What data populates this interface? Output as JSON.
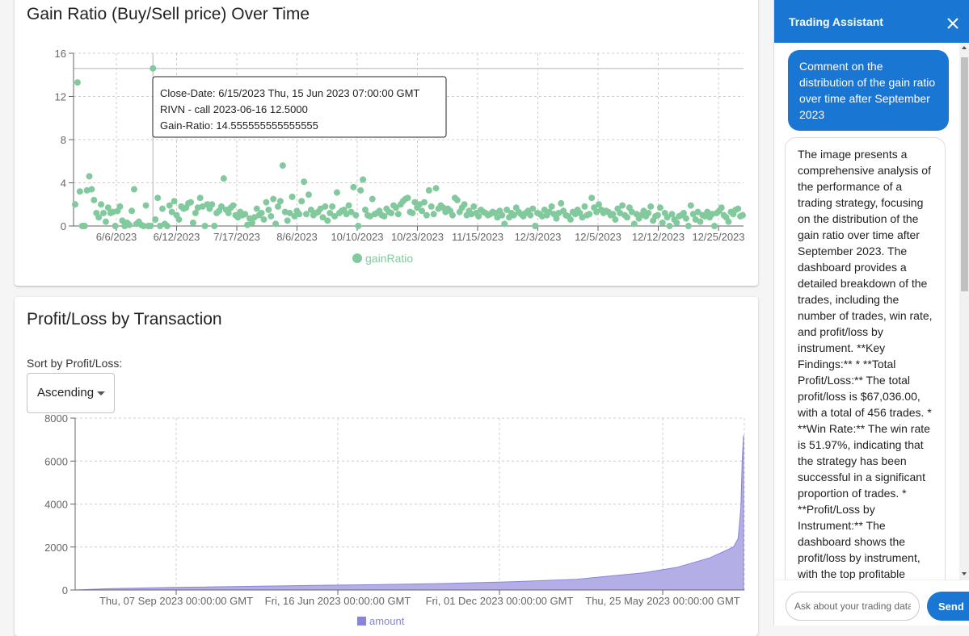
{
  "colors": {
    "accent": "#1976d2",
    "scatter": "#82ca9d",
    "area": "#8884d8"
  },
  "gain_card": {
    "title": "Gain Ratio (Buy/Sell price) Over Time",
    "legend": "gainRatio",
    "tooltip": {
      "line1": "Close-Date: 6/15/2023 Thu, 15 Jun 2023 07:00:00 GMT",
      "line2": "RIVN - call 2023-06-16 12.5000",
      "line3": "Gain-Ratio: 14.555555555555555"
    }
  },
  "pl_card": {
    "title": "Profit/Loss by Transaction",
    "sort_label": "Sort by Profit/Loss:",
    "sort_value": "Ascending",
    "legend": "amount"
  },
  "chart_data": [
    {
      "type": "scatter",
      "title": "Gain Ratio (Buy/Sell price) Over Time",
      "series_name": "gainRatio",
      "ylim": [
        0,
        16
      ],
      "yticks": [
        0,
        4,
        8,
        12,
        16
      ],
      "xtick_labels": [
        "6/6/2023",
        "6/12/2023",
        "7/17/2023",
        "8/6/2023",
        "10/10/2023",
        "10/23/2023",
        "11/15/2023",
        "12/3/2023",
        "12/5/2023",
        "12/12/2023",
        "12/25/2023"
      ],
      "highlighted_point": {
        "close_date": "6/15/2023",
        "gain_ratio": 14.555555555555555
      },
      "values": [
        2.0,
        13.3,
        3.2,
        0.0,
        0.0,
        3.3,
        4.6,
        3.4,
        2.4,
        1.2,
        0.8,
        2.0,
        1.2,
        0.4,
        1.7,
        1.2,
        1.3,
        0.0,
        1.4,
        1.8,
        0.5,
        0.0,
        0.3,
        0.1,
        1.4,
        3.4,
        0.2,
        0.4,
        0.1,
        0.0,
        1.9,
        0.0,
        0.0,
        14.6,
        0.6,
        2.6,
        0.0,
        1.6,
        0.2,
        0.0,
        1.9,
        1.3,
        2.3,
        1.0,
        0.6,
        1.8,
        1.6,
        1.7,
        2.1,
        2.2,
        0.3,
        1.2,
        1.7,
        2.6,
        1.8,
        0.0,
        2.0,
        1.6,
        2.0,
        0.0,
        1.2,
        1.4,
        1.8,
        4.4,
        1.5,
        1.2,
        1.7,
        1.9,
        1.0,
        0.8,
        1.3,
        1.0,
        1.1,
        0.1,
        0.7,
        0.3,
        0.8,
        1.6,
        1.0,
        1.2,
        0.6,
        2.2,
        1.5,
        0.9,
        2.5,
        0.2,
        1.8,
        2.3,
        5.6,
        1.3,
        0.5,
        1.2,
        2.7,
        0.9,
        1.4,
        1.1,
        2.3,
        4.1,
        1.1,
        2.9,
        1.5,
        1.0,
        1.2,
        1.3,
        1.6,
        0.8,
        1.8,
        0.5,
        1.2,
        1.8,
        0.9,
        3.1,
        1.2,
        1.4,
        1.5,
        1.1,
        1.9,
        1.3,
        3.6,
        1.0,
        0.0,
        3.3,
        4.3,
        1.5,
        1.0,
        0.9,
        2.5,
        1.1,
        1.2,
        1.4,
        1.0,
        0.9,
        1.6,
        1.3,
        1.2,
        1.9,
        1.7,
        1.1,
        2.0,
        2.3,
        2.5,
        2.6,
        1.3,
        1.2,
        2.2,
        1.7,
        2.0,
        1.4,
        2.2,
        1.0,
        3.3,
        1.8,
        1.1,
        3.5,
        1.6,
        1.9,
        1.7,
        1.3,
        1.6,
        1.4,
        1.0,
        2.6,
        2.4,
        1.3,
        1.7,
        2.0,
        1.0,
        1.4,
        1.1,
        1.8,
        1.2,
        0.9,
        1.5,
        1.3,
        1.2,
        1.0,
        1.1,
        1.3,
        1.2,
        0.8,
        1.4,
        1.0,
        0.2,
        1.5,
        0.8,
        1.2,
        1.0,
        1.7,
        1.3,
        1.1,
        0.9,
        1.2,
        1.4,
        1.0,
        1.6,
        0.0,
        1.2,
        1.1,
        0.9,
        1.5,
        1.0,
        1.3,
        1.8,
        1.1,
        0.7,
        1.2,
        2.1,
        1.4,
        1.0,
        0.9,
        0.6,
        1.3,
        1.1,
        1.5,
        1.2,
        0.8,
        1.8,
        1.0,
        1.1,
        2.6,
        1.7,
        1.3,
        2.0,
        1.5,
        1.2,
        1.4,
        1.3,
        1.0,
        1.1,
        0.6,
        1.6,
        1.2,
        1.9,
        1.0,
        0.8,
        1.7,
        1.3,
        0.2,
        1.1,
        0.7,
        1.0,
        1.4,
        0.9,
        1.2,
        1.8,
        0.5,
        0.9,
        1.0,
        1.7,
        0.3,
        1.2,
        0.8,
        0.0,
        1.1,
        0.6,
        0.3,
        0.9,
        1.0,
        1.2,
        0.7,
        0.0,
        1.9,
        1.1,
        0.6,
        1.3,
        0.4,
        1.0,
        0.9,
        1.3,
        0.8,
        1.1,
        0.0,
        1.2,
        1.4,
        1.7,
        1.0,
        0.8,
        0.4,
        1.3,
        1.1,
        1.5,
        1.6,
        0.9,
        1.0
      ]
    },
    {
      "type": "area",
      "title": "Profit/Loss by Transaction",
      "series_name": "amount",
      "sort": "Ascending",
      "ylim": [
        0,
        8000
      ],
      "yticks": [
        0,
        2000,
        4000,
        6000,
        8000
      ],
      "xtick_labels": [
        "Thu, 07 Sep 2023 00:00:00 GMT",
        "Fri, 16 Jun 2023 00:00:00 GMT",
        "Fri, 01 Dec 2023 00:00:00 GMT",
        "Thu, 25 May 2023 00:00:00 GMT"
      ],
      "curve_points": [
        {
          "i": 0.0,
          "v": 0
        },
        {
          "i": 0.05,
          "v": 60
        },
        {
          "i": 0.15,
          "v": 120
        },
        {
          "i": 0.3,
          "v": 190
        },
        {
          "i": 0.45,
          "v": 250
        },
        {
          "i": 0.55,
          "v": 300
        },
        {
          "i": 0.65,
          "v": 380
        },
        {
          "i": 0.75,
          "v": 500
        },
        {
          "i": 0.85,
          "v": 800
        },
        {
          "i": 0.9,
          "v": 1050
        },
        {
          "i": 0.95,
          "v": 1500
        },
        {
          "i": 0.985,
          "v": 2000
        },
        {
          "i": 0.992,
          "v": 2400
        },
        {
          "i": 0.996,
          "v": 3800
        },
        {
          "i": 0.998,
          "v": 6000
        },
        {
          "i": 1.0,
          "v": 7200
        }
      ]
    }
  ],
  "assistant": {
    "title": "Trading Assistant",
    "close_icon": "close-icon",
    "user_message": "Comment on the distribution of the gain ratio over time after September 2023",
    "bot_message": "The image presents a comprehensive analysis of the performance of a trading strategy, focusing on the distribution of the gain ratio over time after September 2023. The dashboard provides a detailed breakdown of the trades, including the number of trades, win rate, and profit/loss by instrument. **Key Findings:** * **Total Profit/Loss:** The total profit/loss is $67,036.00, with a total of 456 trades. * **Win Rate:** The win rate is 51.97%, indicating that the strategy has been successful in a significant proportion of trades. * **Profit/Loss by Instrument:** The dashboard shows the profit/loss by instrument, with the top profitable",
    "input_placeholder": "Ask about your trading data",
    "send_label": "Send"
  }
}
